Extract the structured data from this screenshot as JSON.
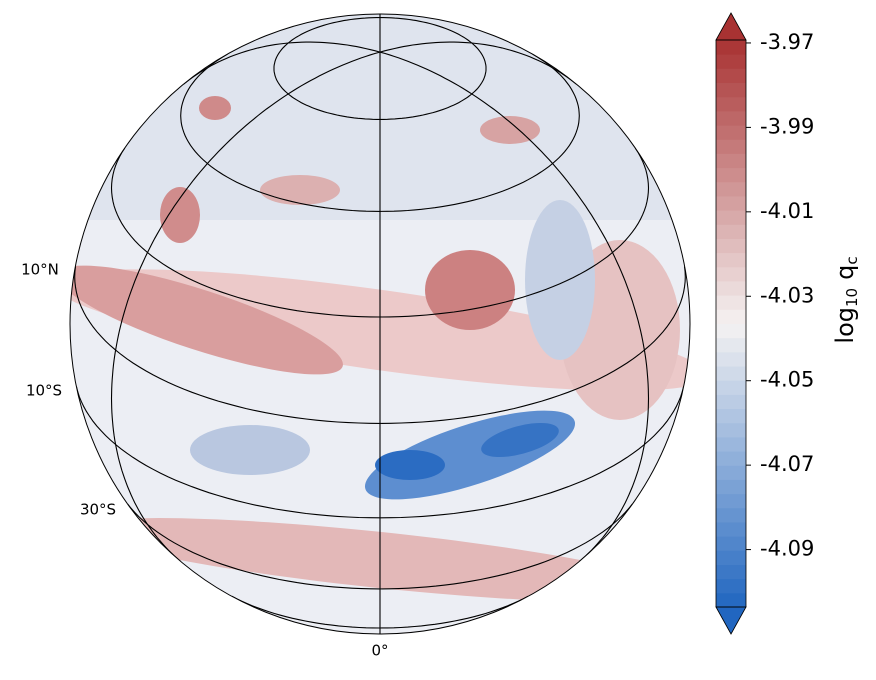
{
  "map": {
    "graticule_labels": {
      "lat_10n": "10°N",
      "lat_10s": "10°S",
      "lat_30s": "30°S",
      "lon_0": "0°"
    },
    "colorbar": {
      "range": [
        -4.1036,
        -3.9693
      ],
      "ticks": [
        -3.97,
        -3.99,
        -4.01,
        -4.03,
        -4.05,
        -4.07,
        -4.09
      ],
      "levels": 40,
      "colors": [
        "#2166c0",
        "#f5f2f2",
        "#a83232"
      ],
      "label": {
        "base": "log",
        "base_sub": "10",
        "var": "q",
        "var_sub": "c"
      }
    }
  }
}
